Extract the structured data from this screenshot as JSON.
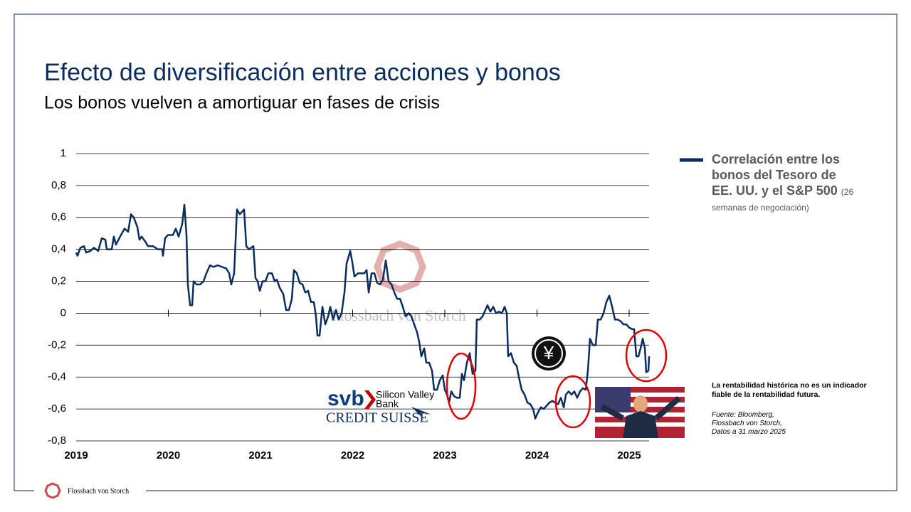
{
  "header": {
    "title": "Efecto de diversificación entre acciones y bonos",
    "subtitle": "Los bonos vuelven a amortiguar en fases de crisis"
  },
  "chart_data": {
    "type": "line",
    "x": [
      2019.0,
      2019.015,
      2019.046,
      2019.085,
      2019.108,
      2019.154,
      2019.193,
      2019.239,
      2019.278,
      2019.317,
      2019.332,
      2019.386,
      2019.409,
      2019.432,
      2019.486,
      2019.525,
      2019.564,
      2019.595,
      2019.625,
      2019.664,
      2019.687,
      2019.71,
      2019.749,
      2019.78,
      2019.834,
      2019.888,
      2019.934,
      2019.942,
      2019.965,
      2019.996,
      2020.05,
      2020.081,
      2020.112,
      2020.151,
      2020.174,
      2020.197,
      2020.212,
      2020.236,
      2020.259,
      2020.274,
      2020.305,
      2020.344,
      2020.382,
      2020.413,
      2020.452,
      2020.49,
      2020.537,
      2020.583,
      2020.629,
      2020.66,
      2020.683,
      2020.714,
      2020.745,
      2020.776,
      2020.822,
      2020.846,
      2020.876,
      2020.923,
      2020.946,
      2020.969,
      2020.992,
      2021.023,
      2021.054,
      2021.085,
      2021.124,
      2021.154,
      2021.178,
      2021.208,
      2021.247,
      2021.278,
      2021.309,
      2021.34,
      2021.363,
      2021.394,
      2021.425,
      2021.456,
      2021.486,
      2021.517,
      2021.548,
      2021.579,
      2021.602,
      2021.618,
      2021.641,
      2021.672,
      2021.703,
      2021.734,
      2021.757,
      2021.788,
      2021.819,
      2021.849,
      2021.88,
      2021.911,
      2021.934,
      2021.973,
      2021.996,
      2022.019,
      2022.058,
      2022.097,
      2022.127,
      2022.151,
      2022.174,
      2022.205,
      2022.236,
      2022.266,
      2022.297,
      2022.328,
      2022.359,
      2022.39,
      2022.421,
      2022.452,
      2022.483,
      2022.514,
      2022.544,
      2022.575,
      2022.606,
      2022.637,
      2022.668,
      2022.699,
      2022.722,
      2022.745,
      2022.776,
      2022.799,
      2022.83,
      2022.861,
      2022.884,
      2022.915,
      2022.946,
      2022.977,
      2023.0,
      2023.023,
      2023.046,
      2023.07,
      2023.1,
      2023.131,
      2023.162,
      2023.185,
      2023.208,
      2023.239,
      2023.27,
      2023.301,
      2023.332,
      2023.347,
      2023.378,
      2023.409,
      2023.44,
      2023.463,
      2023.494,
      2023.525,
      2023.556,
      2023.587,
      2023.618,
      2023.649,
      2023.672,
      2023.687,
      2023.718,
      2023.749,
      2023.78,
      2023.803,
      2023.834,
      2023.865,
      2023.896,
      2023.927,
      2023.958,
      2023.981,
      2024.012,
      2024.042,
      2024.073,
      2024.104,
      2024.135,
      2024.166,
      2024.197,
      2024.228,
      2024.259,
      2024.29,
      2024.313,
      2024.344,
      2024.375,
      2024.405,
      2024.436,
      2024.467,
      2024.498,
      2024.529,
      2024.552,
      2024.575,
      2024.606,
      2024.637,
      2024.66,
      2024.691,
      2024.722,
      2024.753,
      2024.784,
      2024.815,
      2024.846,
      2024.876,
      2024.907,
      2024.938,
      2024.969,
      2025.0,
      2025.031,
      2025.054,
      2025.077,
      2025.101,
      2025.124,
      2025.147,
      2025.17,
      2025.185,
      2025.209,
      2025.216
    ],
    "series": [
      {
        "name": "Correlación entre los bonos del Tesoro de EE. UU. y el S&P 500",
        "color": "#0a2d5e",
        "values": [
          0.38,
          0.36,
          0.41,
          0.42,
          0.38,
          0.39,
          0.41,
          0.39,
          0.47,
          0.46,
          0.4,
          0.4,
          0.48,
          0.43,
          0.49,
          0.53,
          0.51,
          0.62,
          0.6,
          0.54,
          0.46,
          0.48,
          0.45,
          0.42,
          0.42,
          0.4,
          0.4,
          0.36,
          0.47,
          0.49,
          0.49,
          0.53,
          0.48,
          0.56,
          0.68,
          0.49,
          0.18,
          0.05,
          0.05,
          0.2,
          0.18,
          0.18,
          0.2,
          0.25,
          0.3,
          0.29,
          0.3,
          0.29,
          0.28,
          0.25,
          0.18,
          0.25,
          0.65,
          0.62,
          0.65,
          0.42,
          0.4,
          0.42,
          0.22,
          0.2,
          0.14,
          0.2,
          0.2,
          0.25,
          0.25,
          0.2,
          0.21,
          0.16,
          0.12,
          0.02,
          0.02,
          0.09,
          0.27,
          0.25,
          0.19,
          0.18,
          0.13,
          0.14,
          0.07,
          0.07,
          -0.02,
          -0.14,
          -0.14,
          0.04,
          -0.07,
          -0.02,
          0.04,
          -0.04,
          0.02,
          -0.04,
          0,
          0.13,
          0.31,
          0.39,
          0.32,
          0.23,
          0.25,
          0.25,
          0.25,
          0.27,
          0.13,
          0.25,
          0.25,
          0.19,
          0.18,
          0.21,
          0.33,
          0.2,
          0.18,
          0.13,
          0.09,
          0.09,
          0.04,
          -0.02,
          0,
          -0.02,
          -0.07,
          -0.12,
          -0.18,
          -0.27,
          -0.22,
          -0.31,
          -0.31,
          -0.36,
          -0.48,
          -0.48,
          -0.42,
          -0.39,
          -0.48,
          -0.51,
          -0.56,
          -0.49,
          -0.52,
          -0.53,
          -0.53,
          -0.38,
          -0.42,
          -0.31,
          -0.25,
          -0.38,
          -0.36,
          -0.04,
          -0.04,
          -0.02,
          0.02,
          0.05,
          0.01,
          0.04,
          0,
          0.01,
          0,
          0.04,
          0,
          -0.27,
          -0.25,
          -0.31,
          -0.33,
          -0.4,
          -0.48,
          -0.51,
          -0.56,
          -0.57,
          -0.6,
          -0.66,
          -0.62,
          -0.59,
          -0.6,
          -0.58,
          -0.56,
          -0.55,
          -0.56,
          -0.57,
          -0.53,
          -0.59,
          -0.51,
          -0.49,
          -0.51,
          -0.49,
          -0.53,
          -0.49,
          -0.47,
          -0.48,
          -0.36,
          -0.16,
          -0.2,
          -0.2,
          -0.04,
          -0.04,
          0,
          0.07,
          0.11,
          0.04,
          -0.04,
          -0.04,
          -0.05,
          -0.07,
          -0.07,
          -0.09,
          -0.1,
          -0.1,
          -0.27,
          -0.27,
          -0.22,
          -0.16,
          -0.22,
          -0.37,
          -0.36,
          -0.27
        ]
      }
    ],
    "legend_note": "(26 semanas de negociación)",
    "xlim": [
      2019,
      2025.25
    ],
    "xticks": [
      2019,
      2020,
      2021,
      2022,
      2023,
      2024,
      2025
    ],
    "ylim": [
      -0.8,
      1
    ],
    "yticks": [
      {
        "value": -0.8,
        "label": "-0,8"
      },
      {
        "value": -0.6,
        "label": "-0,6"
      },
      {
        "value": -0.4,
        "label": "-0,4"
      },
      {
        "value": -0.2,
        "label": "-0,2"
      },
      0,
      {
        "value": 0.2,
        "label": "0,2"
      },
      {
        "value": 0.4,
        "label": "0,4"
      },
      {
        "value": 0.6,
        "label": "0,6"
      },
      {
        "value": 0.8,
        "label": "0,8"
      },
      1
    ],
    "grid": true,
    "watermark": "Flossbach von Storch",
    "annotations": [
      "svb",
      "Silicon Valley",
      "Bank",
      "CREDIT SUISSE",
      "¥"
    ]
  },
  "disclaimer": "La rentabilidad histórica no es un indicador fiable de la rentabilidad futura.",
  "source": [
    "Fuente: Bloomberg,",
    "Flossbach von Storch,",
    "Datos a 31 marzo 2025"
  ],
  "footer": "Flossbach von Storch"
}
